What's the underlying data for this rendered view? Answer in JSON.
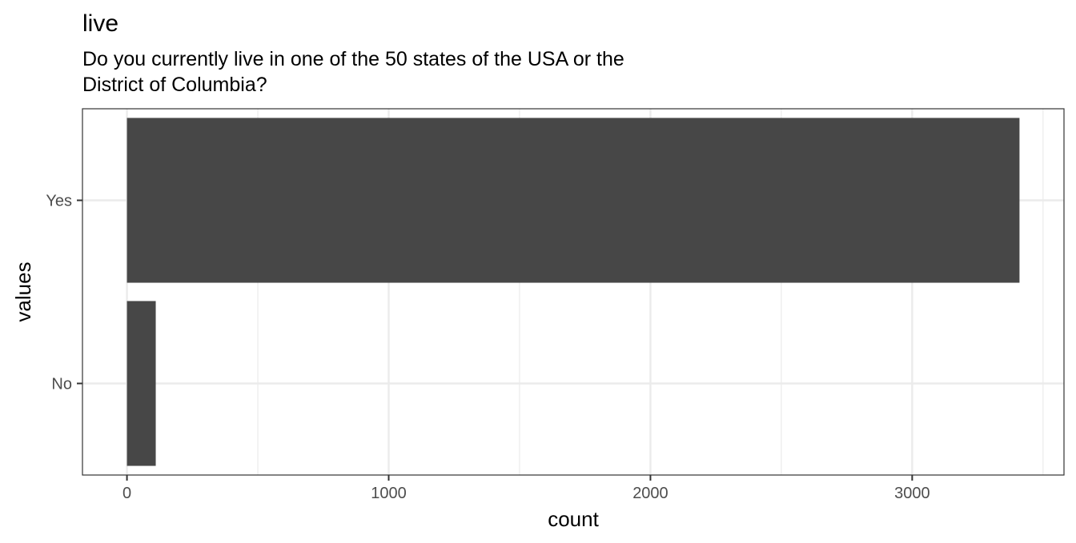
{
  "chart_data": {
    "type": "bar",
    "orientation": "horizontal",
    "title": "live",
    "subtitle_lines": [
      "Do you currently live in one of the 50 states of the USA or the",
      "District of Columbia?"
    ],
    "xlabel": "count",
    "ylabel": "values",
    "categories": [
      "Yes",
      "No"
    ],
    "values": [
      3410,
      110
    ],
    "xlim": [
      -170,
      3580
    ],
    "x_ticks": [
      0,
      1000,
      2000,
      3000
    ],
    "x_minor_ticks": [
      500,
      1500,
      2500,
      3500
    ],
    "grid": true,
    "legend": "none",
    "colors": {
      "bar": "#474747",
      "grid": "#ebebeb",
      "panel_border": "#333333",
      "tick_label": "#4d4d4d"
    }
  }
}
